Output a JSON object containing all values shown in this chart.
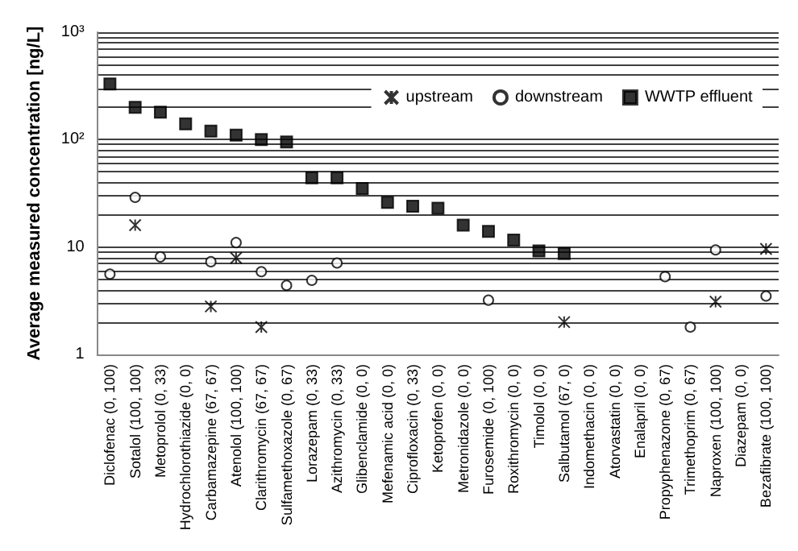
{
  "chart_data": {
    "type": "scatter",
    "ylabel": "Average measured concentration [ng/L]",
    "categories": [
      "Diclofenac (0, 100)",
      "Sotalol (100, 100)",
      "Metoprolol (0, 33)",
      "Hydrochlorothiazide (0, 0)",
      "Carbamazepine (67, 67)",
      "Atenolol (100, 100)",
      "Clarithromycin (67, 67)",
      "Sulfamethoxazole (0, 67)",
      "Lorazepam (0, 33)",
      "Azithromycin (0, 33)",
      "Glibenclamide (0, 0)",
      "Mefenamic acid (0, 0)",
      "Ciprofloxacin (0, 33)",
      "Ketoprofen (0, 0)",
      "Metronidazole (0, 0)",
      "Furosemide (0, 100)",
      "Roxithromycin (0, 0)",
      "Timolol (0, 0)",
      "Salbutamol (67, 0)",
      "Indomethacin (0, 0)",
      "Atorvastatin (0, 0)",
      "Enalapril (0, 0)",
      "Propyphenazone (0, 67)",
      "Trimethoprim (0, 67)",
      "Naproxen (100, 100)",
      "Diazepam (0, 0)",
      "Bezafibrate (100, 100)"
    ],
    "series": [
      {
        "name": "upstream",
        "color": "#000000",
        "marker": "cross",
        "values": [
          null,
          16,
          null,
          null,
          2.8,
          7.9,
          1.8,
          null,
          null,
          null,
          null,
          null,
          null,
          null,
          null,
          null,
          null,
          null,
          2.0,
          null,
          null,
          null,
          null,
          null,
          3.1,
          null,
          9.6
        ]
      },
      {
        "name": "downstream",
        "color": "#000000",
        "marker": "circle",
        "values": [
          5.6,
          29,
          8.1,
          null,
          7.3,
          11,
          5.9,
          4.4,
          4.9,
          7.1,
          null,
          null,
          null,
          null,
          null,
          3.2,
          null,
          null,
          null,
          null,
          null,
          null,
          5.3,
          1.8,
          9.4,
          null,
          3.5
        ]
      },
      {
        "name": "WWTP effluent",
        "color": "#000000",
        "marker": "square",
        "values": [
          330,
          200,
          180,
          140,
          120,
          110,
          100,
          95,
          44,
          44,
          35,
          26,
          24,
          23,
          16,
          14,
          11.6,
          9.2,
          8.7,
          null,
          null,
          null,
          null,
          null,
          null,
          null,
          null
        ]
      }
    ],
    "log": "y",
    "ylim": [
      1,
      1000
    ],
    "yticks": [
      1,
      {
        "value": 2,
        "label": null
      },
      {
        "value": 3,
        "label": null
      },
      {
        "value": 4,
        "label": null
      },
      {
        "value": 5,
        "label": null
      },
      {
        "value": 6,
        "label": null
      },
      {
        "value": 7,
        "label": null
      },
      {
        "value": 8,
        "label": null
      },
      {
        "value": 9,
        "label": null
      },
      10,
      {
        "value": 20,
        "label": null
      },
      {
        "value": 30,
        "label": null
      },
      {
        "value": 40,
        "label": null
      },
      {
        "value": 50,
        "label": null
      },
      {
        "value": 60,
        "label": null
      },
      {
        "value": 70,
        "label": null
      },
      {
        "value": 80,
        "label": null
      },
      {
        "value": 90,
        "label": null
      },
      {
        "value": 100,
        "label": "10²"
      },
      {
        "value": 200,
        "label": null
      },
      {
        "value": 300,
        "label": null
      },
      {
        "value": 400,
        "label": null
      },
      {
        "value": 500,
        "label": null
      },
      {
        "value": 600,
        "label": null
      },
      {
        "value": 700,
        "label": null
      },
      {
        "value": 800,
        "label": null
      },
      {
        "value": 900,
        "label": null
      },
      {
        "value": 1000,
        "label": "10³"
      }
    ],
    "grid": "y",
    "legend": "top right"
  }
}
